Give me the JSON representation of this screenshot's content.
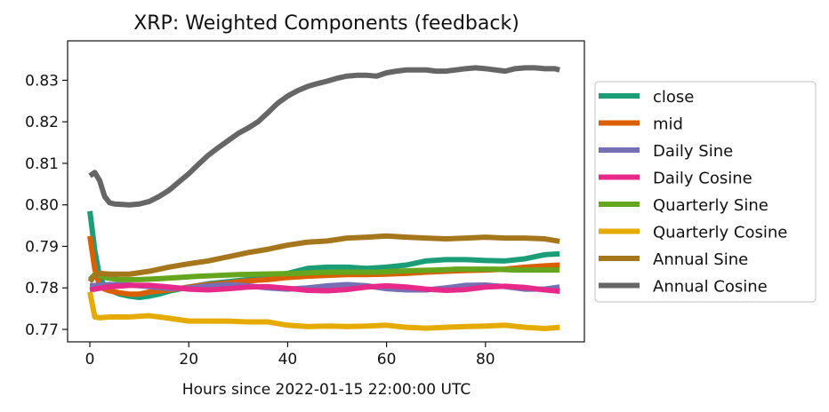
{
  "chart_data": {
    "type": "line",
    "title": "XRP: Weighted Components (feedback)",
    "xlabel": "Hours since 2022-01-15 22:00:00 UTC",
    "ylabel": "",
    "xlim": [
      -4.5,
      100
    ],
    "ylim": [
      0.767,
      0.8395
    ],
    "xticks": [
      0,
      20,
      40,
      60,
      80
    ],
    "yticks": [
      0.77,
      0.78,
      0.79,
      0.8,
      0.81,
      0.82,
      0.83
    ],
    "ytick_labels": [
      "0.77",
      "0.78",
      "0.79",
      "0.80",
      "0.81",
      "0.82",
      "0.83"
    ],
    "grid": false,
    "legend": "outside-right",
    "series": [
      {
        "name": "close",
        "color": "#1b9e77",
        "points": [
          [
            0,
            0.7985
          ],
          [
            1,
            0.789
          ],
          [
            2,
            0.7825
          ],
          [
            3,
            0.7805
          ],
          [
            4,
            0.7795
          ],
          [
            5,
            0.779
          ],
          [
            6,
            0.7785
          ],
          [
            8,
            0.778
          ],
          [
            10,
            0.7777
          ],
          [
            12,
            0.778
          ],
          [
            14,
            0.7785
          ],
          [
            16,
            0.7792
          ],
          [
            20,
            0.7802
          ],
          [
            24,
            0.781
          ],
          [
            28,
            0.7815
          ],
          [
            32,
            0.782
          ],
          [
            36,
            0.7825
          ],
          [
            40,
            0.7835
          ],
          [
            44,
            0.7847
          ],
          [
            48,
            0.785
          ],
          [
            52,
            0.785
          ],
          [
            56,
            0.7847
          ],
          [
            60,
            0.785
          ],
          [
            64,
            0.7855
          ],
          [
            68,
            0.7865
          ],
          [
            72,
            0.7868
          ],
          [
            76,
            0.7868
          ],
          [
            80,
            0.7866
          ],
          [
            84,
            0.7865
          ],
          [
            88,
            0.787
          ],
          [
            92,
            0.788
          ],
          [
            95,
            0.7882
          ]
        ]
      },
      {
        "name": "mid",
        "color": "#d95f02",
        "points": [
          [
            0,
            0.7925
          ],
          [
            1,
            0.7845
          ],
          [
            2,
            0.7805
          ],
          [
            3,
            0.7797
          ],
          [
            4,
            0.7793
          ],
          [
            6,
            0.7788
          ],
          [
            8,
            0.7785
          ],
          [
            10,
            0.7785
          ],
          [
            12,
            0.779
          ],
          [
            16,
            0.7795
          ],
          [
            20,
            0.7802
          ],
          [
            24,
            0.7808
          ],
          [
            28,
            0.7812
          ],
          [
            32,
            0.7817
          ],
          [
            36,
            0.782
          ],
          [
            40,
            0.7825
          ],
          [
            44,
            0.7828
          ],
          [
            48,
            0.783
          ],
          [
            52,
            0.7832
          ],
          [
            56,
            0.7832
          ],
          [
            60,
            0.7833
          ],
          [
            64,
            0.7835
          ],
          [
            68,
            0.7838
          ],
          [
            72,
            0.784
          ],
          [
            76,
            0.7842
          ],
          [
            80,
            0.7843
          ],
          [
            84,
            0.7845
          ],
          [
            88,
            0.785
          ],
          [
            92,
            0.7853
          ],
          [
            95,
            0.7855
          ]
        ]
      },
      {
        "name": "Daily Sine",
        "color": "#7570b3",
        "points": [
          [
            0,
            0.7805
          ],
          [
            4,
            0.7808
          ],
          [
            8,
            0.7807
          ],
          [
            12,
            0.7803
          ],
          [
            16,
            0.7798
          ],
          [
            20,
            0.78
          ],
          [
            24,
            0.7805
          ],
          [
            28,
            0.7808
          ],
          [
            32,
            0.7805
          ],
          [
            36,
            0.78
          ],
          [
            40,
            0.7797
          ],
          [
            44,
            0.78
          ],
          [
            48,
            0.7805
          ],
          [
            52,
            0.7808
          ],
          [
            56,
            0.7805
          ],
          [
            60,
            0.7798
          ],
          [
            64,
            0.7795
          ],
          [
            68,
            0.7795
          ],
          [
            72,
            0.78
          ],
          [
            76,
            0.7806
          ],
          [
            80,
            0.7807
          ],
          [
            84,
            0.7803
          ],
          [
            88,
            0.7797
          ],
          [
            92,
            0.7797
          ],
          [
            95,
            0.7802
          ]
        ]
      },
      {
        "name": "Daily Cosine",
        "color": "#e7298a",
        "points": [
          [
            0,
            0.7795
          ],
          [
            4,
            0.7803
          ],
          [
            8,
            0.7806
          ],
          [
            12,
            0.7806
          ],
          [
            16,
            0.7802
          ],
          [
            20,
            0.7797
          ],
          [
            24,
            0.7795
          ],
          [
            28,
            0.7798
          ],
          [
            32,
            0.7802
          ],
          [
            36,
            0.7803
          ],
          [
            40,
            0.7799
          ],
          [
            44,
            0.7794
          ],
          [
            48,
            0.7793
          ],
          [
            52,
            0.7796
          ],
          [
            56,
            0.7802
          ],
          [
            60,
            0.7805
          ],
          [
            64,
            0.7802
          ],
          [
            68,
            0.7797
          ],
          [
            72,
            0.7794
          ],
          [
            76,
            0.7796
          ],
          [
            80,
            0.7802
          ],
          [
            84,
            0.7804
          ],
          [
            88,
            0.7801
          ],
          [
            92,
            0.7795
          ],
          [
            95,
            0.7792
          ]
        ]
      },
      {
        "name": "Quarterly Sine",
        "color": "#66a61e",
        "points": [
          [
            0,
            0.782
          ],
          [
            1,
            0.7832
          ],
          [
            2,
            0.783
          ],
          [
            3,
            0.7825
          ],
          [
            4,
            0.7823
          ],
          [
            6,
            0.782
          ],
          [
            10,
            0.782
          ],
          [
            14,
            0.7822
          ],
          [
            18,
            0.7825
          ],
          [
            22,
            0.7828
          ],
          [
            26,
            0.783
          ],
          [
            30,
            0.7832
          ],
          [
            34,
            0.7833
          ],
          [
            38,
            0.7834
          ],
          [
            42,
            0.7835
          ],
          [
            46,
            0.7837
          ],
          [
            50,
            0.7838
          ],
          [
            54,
            0.7838
          ],
          [
            58,
            0.7838
          ],
          [
            62,
            0.784
          ],
          [
            66,
            0.7842
          ],
          [
            70,
            0.7843
          ],
          [
            74,
            0.7845
          ],
          [
            78,
            0.7845
          ],
          [
            82,
            0.7845
          ],
          [
            86,
            0.7843
          ],
          [
            90,
            0.7843
          ],
          [
            95,
            0.7843
          ]
        ]
      },
      {
        "name": "Quarterly Cosine",
        "color": "#e6ab02",
        "points": [
          [
            0,
            0.779
          ],
          [
            1,
            0.773
          ],
          [
            2,
            0.7728
          ],
          [
            4,
            0.773
          ],
          [
            8,
            0.773
          ],
          [
            12,
            0.7733
          ],
          [
            16,
            0.7727
          ],
          [
            20,
            0.772
          ],
          [
            24,
            0.772
          ],
          [
            28,
            0.772
          ],
          [
            32,
            0.7718
          ],
          [
            36,
            0.7718
          ],
          [
            40,
            0.771
          ],
          [
            44,
            0.7707
          ],
          [
            48,
            0.7708
          ],
          [
            52,
            0.7707
          ],
          [
            56,
            0.7708
          ],
          [
            60,
            0.771
          ],
          [
            64,
            0.7705
          ],
          [
            68,
            0.7703
          ],
          [
            72,
            0.7705
          ],
          [
            76,
            0.7707
          ],
          [
            80,
            0.7708
          ],
          [
            84,
            0.771
          ],
          [
            88,
            0.7705
          ],
          [
            92,
            0.7702
          ],
          [
            95,
            0.7705
          ]
        ]
      },
      {
        "name": "Annual Sine",
        "color": "#a6761d",
        "points": [
          [
            0,
            0.7815
          ],
          [
            1,
            0.783
          ],
          [
            2,
            0.7835
          ],
          [
            4,
            0.7833
          ],
          [
            8,
            0.7833
          ],
          [
            12,
            0.784
          ],
          [
            16,
            0.785
          ],
          [
            20,
            0.7858
          ],
          [
            24,
            0.7865
          ],
          [
            28,
            0.7875
          ],
          [
            32,
            0.7885
          ],
          [
            36,
            0.7893
          ],
          [
            40,
            0.7903
          ],
          [
            44,
            0.791
          ],
          [
            48,
            0.7913
          ],
          [
            52,
            0.792
          ],
          [
            56,
            0.7922
          ],
          [
            60,
            0.7925
          ],
          [
            64,
            0.7922
          ],
          [
            68,
            0.792
          ],
          [
            72,
            0.7918
          ],
          [
            76,
            0.792
          ],
          [
            80,
            0.7922
          ],
          [
            84,
            0.792
          ],
          [
            88,
            0.792
          ],
          [
            92,
            0.7918
          ],
          [
            95,
            0.7912
          ]
        ]
      },
      {
        "name": "Annual Cosine",
        "color": "#666666",
        "points": [
          [
            0,
            0.807
          ],
          [
            1,
            0.8078
          ],
          [
            2,
            0.8058
          ],
          [
            3,
            0.802
          ],
          [
            4,
            0.8005
          ],
          [
            5,
            0.8002
          ],
          [
            8,
            0.8
          ],
          [
            10,
            0.8002
          ],
          [
            12,
            0.8008
          ],
          [
            14,
            0.802
          ],
          [
            16,
            0.8035
          ],
          [
            18,
            0.8055
          ],
          [
            20,
            0.8075
          ],
          [
            22,
            0.8098
          ],
          [
            24,
            0.812
          ],
          [
            26,
            0.8138
          ],
          [
            28,
            0.8155
          ],
          [
            30,
            0.8172
          ],
          [
            32,
            0.8185
          ],
          [
            34,
            0.82
          ],
          [
            36,
            0.8222
          ],
          [
            38,
            0.8245
          ],
          [
            40,
            0.8262
          ],
          [
            42,
            0.8275
          ],
          [
            44,
            0.8285
          ],
          [
            46,
            0.8292
          ],
          [
            48,
            0.8298
          ],
          [
            50,
            0.8305
          ],
          [
            52,
            0.831
          ],
          [
            54,
            0.8312
          ],
          [
            56,
            0.8312
          ],
          [
            58,
            0.831
          ],
          [
            60,
            0.8318
          ],
          [
            62,
            0.8322
          ],
          [
            64,
            0.8325
          ],
          [
            66,
            0.8325
          ],
          [
            68,
            0.8325
          ],
          [
            70,
            0.8322
          ],
          [
            72,
            0.8322
          ],
          [
            74,
            0.8325
          ],
          [
            76,
            0.8328
          ],
          [
            78,
            0.833
          ],
          [
            80,
            0.8328
          ],
          [
            82,
            0.8325
          ],
          [
            84,
            0.8322
          ],
          [
            86,
            0.8328
          ],
          [
            88,
            0.833
          ],
          [
            90,
            0.833
          ],
          [
            92,
            0.8328
          ],
          [
            94,
            0.8328
          ],
          [
            95,
            0.8325
          ]
        ]
      }
    ]
  }
}
